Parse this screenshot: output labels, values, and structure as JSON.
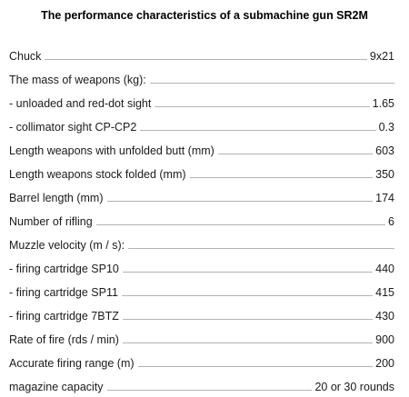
{
  "title": "The performance characteristics of a submachine gun SR2M",
  "specs": [
    {
      "label": "Chuck",
      "value": "9x21"
    },
    {
      "label": "The mass of weapons (kg):",
      "value": ""
    },
    {
      "label": "- unloaded and red-dot sight",
      "value": "1.65"
    },
    {
      "label": "- collimator sight CP-CP2",
      "value": "0.3"
    },
    {
      "label": "Length weapons with unfolded butt (mm)",
      "value": "603"
    },
    {
      "label": "Length weapons stock folded (mm)",
      "value": "350"
    },
    {
      "label": "Barrel length (mm)",
      "value": "174"
    },
    {
      "label": "Number of rifling",
      "value": "6"
    },
    {
      "label": "Muzzle velocity (m / s):",
      "value": ""
    },
    {
      "label": "- firing cartridge SP10",
      "value": "440"
    },
    {
      "label": "- firing cartridge SP11",
      "value": "415"
    },
    {
      "label": "- firing cartridge 7BTZ",
      "value": "430"
    },
    {
      "label": "Rate of fire (rds / min)",
      "value": "900"
    },
    {
      "label": "Accurate firing range (m)",
      "value": "200"
    },
    {
      "label": "magazine capacity",
      "value": "20 or 30 rounds"
    }
  ]
}
